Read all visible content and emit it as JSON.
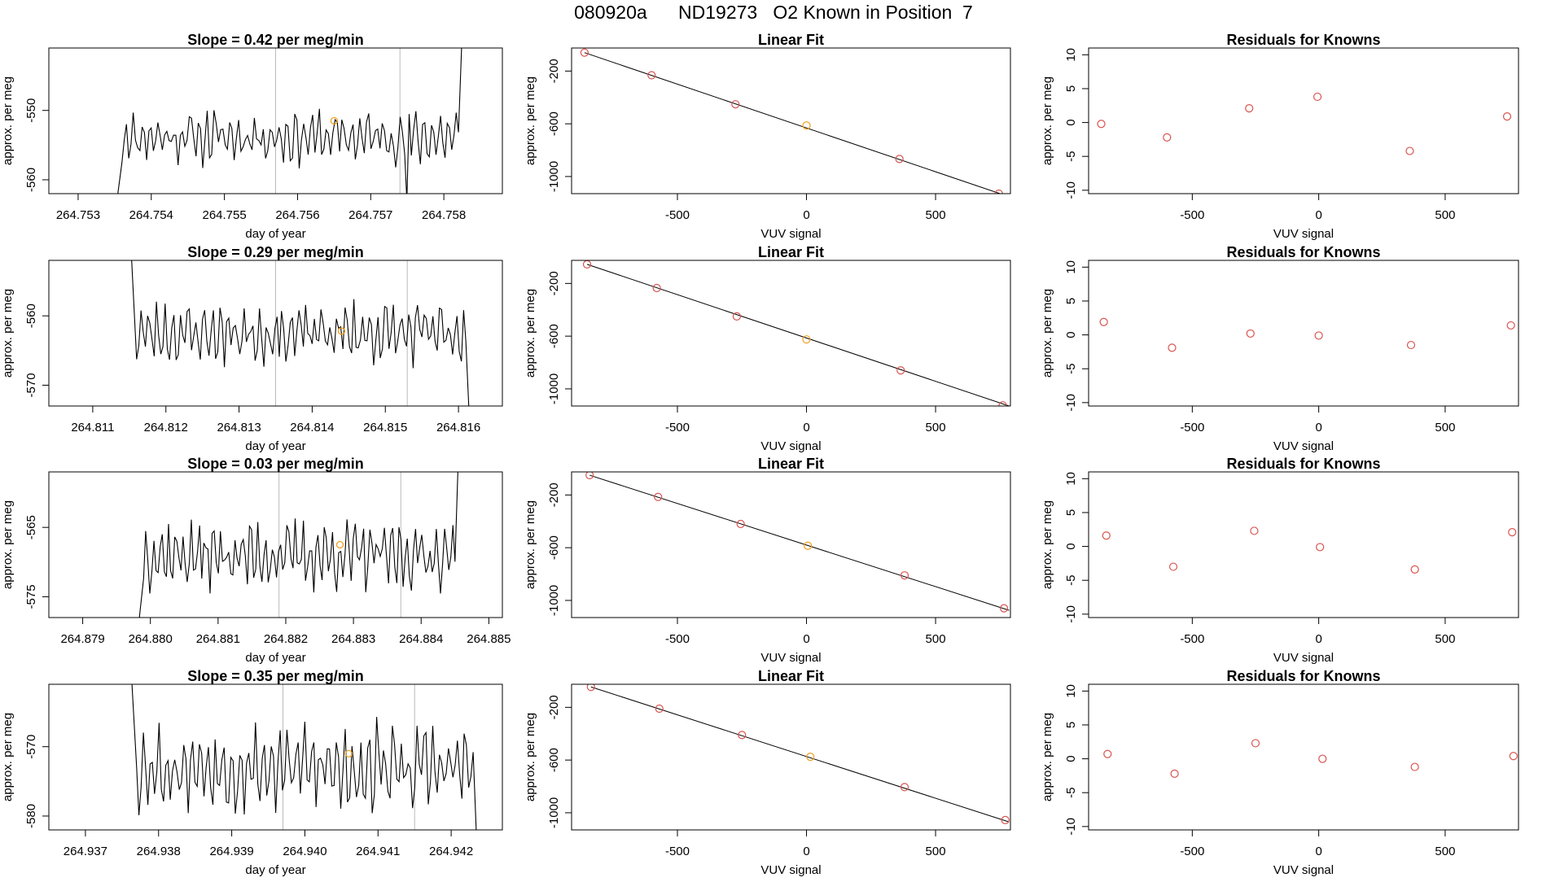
{
  "figure_title": "080920a      ND19273   O2 Known in Position  7",
  "colors": {
    "line": "#000000",
    "fit_point": "#d9534f",
    "highlight_point": "#f0a020",
    "marker_line": "#bbbbbb"
  },
  "chart_data": [
    {
      "type": "line",
      "title": "Slope =  0.42  per meg/min",
      "xlabel": "day of year",
      "ylabel": "approx. per meg",
      "xlim": [
        264.7526,
        264.7588
      ],
      "ylim": [
        -562,
        -541
      ],
      "xticks": [
        264.753,
        264.754,
        264.755,
        264.756,
        264.757,
        264.758
      ],
      "xtick_labels": [
        "264.753",
        "264.754",
        "264.755",
        "264.756",
        "264.757",
        "264.758"
      ],
      "yticks": [
        -560,
        -550
      ],
      "ytick_labels": [
        "-560",
        "-550"
      ],
      "x_start": 264.7536,
      "x_end": 264.7582,
      "base": -553.8,
      "amp": 2.6,
      "seed": 11,
      "lead_in_from": -563,
      "tail_to": -540,
      "dip_at": 264.7575,
      "dip_to": -563,
      "vlines": [
        264.7557,
        264.7574
      ],
      "highlight": {
        "x": 264.7565,
        "y": -551.5
      }
    },
    {
      "type": "scatter",
      "title": "Linear Fit",
      "xlabel": "VUV signal",
      "ylabel": "approx. per meg",
      "xlim": [
        -910,
        790
      ],
      "ylim": [
        -1130,
        -25
      ],
      "xticks": [
        -500,
        0,
        500
      ],
      "xtick_labels": [
        "-500",
        "0",
        "500"
      ],
      "yticks": [
        -1000,
        -600,
        -200
      ],
      "ytick_labels": [
        "-1000",
        "-600",
        "-200"
      ],
      "x": [
        -860,
        -600,
        -275,
        0,
        360,
        745
      ],
      "y": [
        -60,
        -232,
        -452,
        -613,
        -867,
        -1130
      ],
      "highlight_index": 3,
      "fit_line": [
        [
          -860,
          -60
        ],
        [
          780,
          -1150
        ]
      ]
    },
    {
      "type": "scatter",
      "title": "Residuals for Knowns",
      "xlabel": "VUV signal",
      "ylabel": "approx. per meg",
      "xlim": [
        -910,
        790
      ],
      "ylim": [
        -10.5,
        11
      ],
      "xticks": [
        -500,
        0,
        500
      ],
      "xtick_labels": [
        "-500",
        "0",
        "500"
      ],
      "yticks": [
        -10,
        -5,
        0,
        5,
        10
      ],
      "ytick_labels": [
        "-10",
        "-5",
        "0",
        "5",
        "10"
      ],
      "x": [
        -860,
        -600,
        -275,
        -5,
        360,
        745
      ],
      "y": [
        -0.2,
        -2.2,
        2.1,
        3.8,
        -4.2,
        0.9
      ]
    },
    {
      "type": "line",
      "title": "Slope =  0.29  per meg/min",
      "xlabel": "day of year",
      "ylabel": "approx. per meg",
      "xlim": [
        264.8104,
        264.8166
      ],
      "ylim": [
        -573,
        -552
      ],
      "xticks": [
        264.811,
        264.812,
        264.813,
        264.814,
        264.815,
        264.816
      ],
      "xtick_labels": [
        "264.811",
        "264.812",
        "264.813",
        "264.814",
        "264.815",
        "264.816"
      ],
      "yticks": [
        -570,
        -560
      ],
      "ytick_labels": [
        "-570",
        "-560"
      ],
      "x_start": 264.8116,
      "x_end": 264.8161,
      "base": -562.5,
      "amp": 3.0,
      "seed": 23,
      "lead_in_from": -552,
      "tail_to": -574,
      "vlines": [
        264.8135,
        264.8153
      ],
      "highlight": {
        "x": 264.8144,
        "y": -562.2
      }
    },
    {
      "type": "scatter",
      "title": "Linear Fit",
      "xlabel": "VUV signal",
      "ylabel": "approx. per meg",
      "xlim": [
        -910,
        790
      ],
      "ylim": [
        -1130,
        -25
      ],
      "xticks": [
        -500,
        0,
        500
      ],
      "xtick_labels": [
        "-500",
        "0",
        "500"
      ],
      "yticks": [
        -1000,
        -600,
        -200
      ],
      "ytick_labels": [
        "-1000",
        "-600",
        "-200"
      ],
      "x": [
        -850,
        -580,
        -270,
        0,
        365,
        760
      ],
      "y": [
        -55,
        -235,
        -450,
        -625,
        -860,
        -1125
      ],
      "highlight_index": 3,
      "fit_line": [
        [
          -850,
          -55
        ],
        [
          785,
          -1130
        ]
      ]
    },
    {
      "type": "scatter",
      "title": "Residuals for Knowns",
      "xlabel": "VUV signal",
      "ylabel": "approx. per meg",
      "xlim": [
        -910,
        790
      ],
      "ylim": [
        -10.5,
        11
      ],
      "xticks": [
        -500,
        0,
        500
      ],
      "xtick_labels": [
        "-500",
        "0",
        "500"
      ],
      "yticks": [
        -10,
        -5,
        0,
        5,
        10
      ],
      "ytick_labels": [
        "-10",
        "-5",
        "0",
        "5",
        "10"
      ],
      "x": [
        -850,
        -580,
        -270,
        0,
        365,
        760
      ],
      "y": [
        1.9,
        -1.9,
        0.2,
        -0.1,
        -1.5,
        1.4
      ]
    },
    {
      "type": "line",
      "title": "Slope =  0.03  per meg/min",
      "xlabel": "day of year",
      "ylabel": "approx. per meg",
      "xlim": [
        264.8785,
        264.8852
      ],
      "ylim": [
        -578,
        -557
      ],
      "xticks": [
        264.879,
        264.88,
        264.881,
        264.882,
        264.883,
        264.884,
        264.885
      ],
      "xtick_labels": [
        "264.879",
        "264.880",
        "264.881",
        "264.882",
        "264.883",
        "264.884",
        "264.885"
      ],
      "yticks": [
        -575,
        -565
      ],
      "ytick_labels": [
        "-575",
        "-565"
      ],
      "x_start": 264.8799,
      "x_end": 264.8845,
      "base": -569.0,
      "amp": 3.2,
      "seed": 37,
      "lead_in_from": -578.5,
      "tail_to": -556,
      "vlines": [
        264.8819,
        264.8837
      ],
      "highlight": {
        "x": 264.8828,
        "y": -567.5
      }
    },
    {
      "type": "scatter",
      "title": "Linear Fit",
      "xlabel": "VUV signal",
      "ylabel": "approx. per meg",
      "xlim": [
        -910,
        790
      ],
      "ylim": [
        -1130,
        -25
      ],
      "xticks": [
        -500,
        0,
        500
      ],
      "xtick_labels": [
        "-500",
        "0",
        "500"
      ],
      "yticks": [
        -1000,
        -600,
        -200
      ],
      "ytick_labels": [
        "-1000",
        "-600",
        "-200"
      ],
      "x": [
        -840,
        -575,
        -255,
        5,
        380,
        765
      ],
      "y": [
        -50,
        -215,
        -420,
        -585,
        -810,
        -1060
      ],
      "highlight_index": 3,
      "fit_line": [
        [
          -840,
          -50
        ],
        [
          785,
          -1075
        ]
      ]
    },
    {
      "type": "scatter",
      "title": "Residuals for Knowns",
      "xlabel": "VUV signal",
      "ylabel": "approx. per meg",
      "xlim": [
        -910,
        790
      ],
      "ylim": [
        -10.5,
        11
      ],
      "xticks": [
        -500,
        0,
        500
      ],
      "xtick_labels": [
        "-500",
        "0",
        "500"
      ],
      "yticks": [
        -10,
        -5,
        0,
        5,
        10
      ],
      "ytick_labels": [
        "-10",
        "-5",
        "0",
        "5",
        "10"
      ],
      "x": [
        -840,
        -575,
        -255,
        5,
        380,
        765
      ],
      "y": [
        1.6,
        -3.0,
        2.3,
        -0.1,
        -3.4,
        2.1
      ]
    },
    {
      "type": "line",
      "title": "Slope =  0.35  per meg/min",
      "xlabel": "day of year",
      "ylabel": "approx. per meg",
      "xlim": [
        264.9365,
        264.9427
      ],
      "ylim": [
        -582,
        -561
      ],
      "xticks": [
        264.937,
        264.938,
        264.939,
        264.94,
        264.941,
        264.942
      ],
      "xtick_labels": [
        "264.937",
        "264.938",
        "264.939",
        "264.940",
        "264.941",
        "264.942"
      ],
      "yticks": [
        -580,
        -570
      ],
      "ytick_labels": [
        "-580",
        "-570"
      ],
      "x_start": 264.9377,
      "x_end": 264.9423,
      "base": -573.0,
      "amp": 4.2,
      "seed": 53,
      "lead_in_from": -560,
      "tail_to": -583,
      "vlines": [
        264.9397,
        264.9415
      ],
      "highlight": {
        "x": 264.9406,
        "y": -571.0
      }
    },
    {
      "type": "scatter",
      "title": "Linear Fit",
      "xlabel": "VUV signal",
      "ylabel": "approx. per meg",
      "xlim": [
        -910,
        790
      ],
      "ylim": [
        -1130,
        -25
      ],
      "xticks": [
        -500,
        0,
        500
      ],
      "xtick_labels": [
        "-500",
        "0",
        "500"
      ],
      "yticks": [
        -1000,
        -600,
        -200
      ],
      "ytick_labels": [
        "-1000",
        "-600",
        "-200"
      ],
      "x": [
        -835,
        -570,
        -250,
        15,
        380,
        770
      ],
      "y": [
        -45,
        -210,
        -410,
        -575,
        -805,
        -1055
      ],
      "highlight_index": 3,
      "fit_line": [
        [
          -835,
          -45
        ],
        [
          785,
          -1070
        ]
      ]
    },
    {
      "type": "scatter",
      "title": "Residuals for Knowns",
      "xlabel": "VUV signal",
      "ylabel": "approx. per meg",
      "xlim": [
        -910,
        790
      ],
      "ylim": [
        -10.5,
        11
      ],
      "xticks": [
        -500,
        0,
        500
      ],
      "xtick_labels": [
        "-500",
        "0",
        "500"
      ],
      "yticks": [
        -10,
        -5,
        0,
        5,
        10
      ],
      "ytick_labels": [
        "-10",
        "-5",
        "0",
        "5",
        "10"
      ],
      "x": [
        -835,
        -570,
        -250,
        15,
        380,
        770
      ],
      "y": [
        0.7,
        -2.2,
        2.3,
        0.0,
        -1.2,
        0.4
      ]
    }
  ]
}
